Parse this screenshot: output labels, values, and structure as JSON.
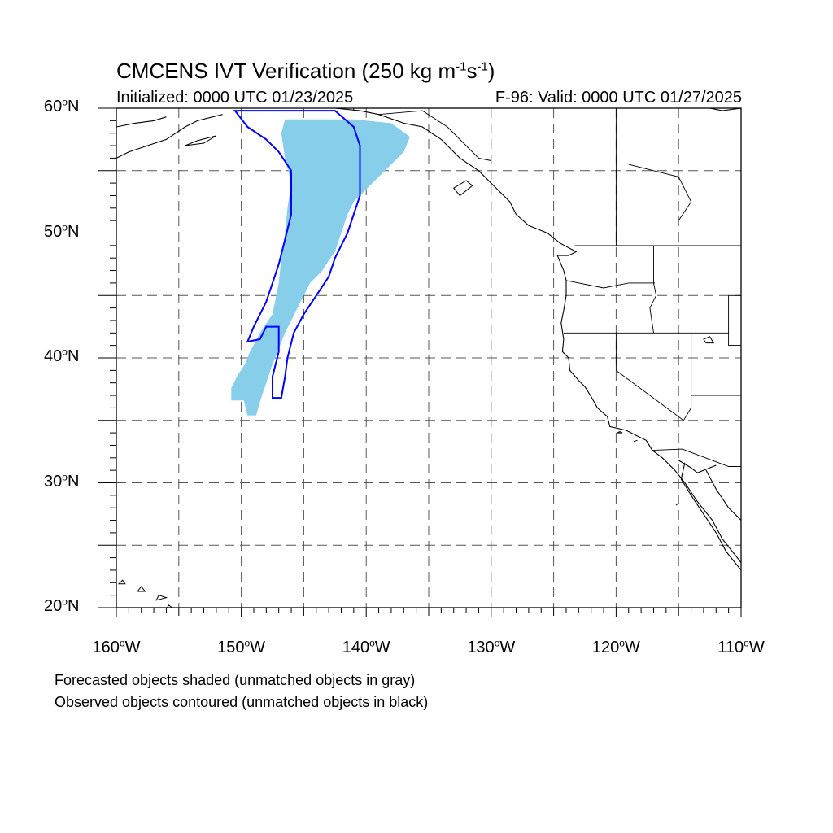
{
  "title": {
    "prefix": "CMCENS IVT Verification (250 kg m",
    "exp1": "-1",
    "mid": "s",
    "exp2": "-1",
    "suffix": ")"
  },
  "subtitle_left": "Initialized: 0000 UTC 01/23/2025",
  "subtitle_right": "F-96: Valid: 0000 UTC 01/27/2025",
  "map": {
    "lon_range": [
      -160,
      -110
    ],
    "lat_range": [
      20,
      60
    ],
    "grid": "dashed",
    "lat_labels": [
      {
        "lat": 60,
        "text": "60",
        "deg": "o",
        "hem": "N"
      },
      {
        "lat": 50,
        "text": "50",
        "deg": "o",
        "hem": "N"
      },
      {
        "lat": 40,
        "text": "40",
        "deg": "o",
        "hem": "N"
      },
      {
        "lat": 30,
        "text": "30",
        "deg": "o",
        "hem": "N"
      },
      {
        "lat": 20,
        "text": "20",
        "deg": "o",
        "hem": "N"
      }
    ],
    "lon_labels": [
      {
        "lon": -160,
        "text": "160",
        "deg": "o",
        "hem": "W"
      },
      {
        "lon": -150,
        "text": "150",
        "deg": "o",
        "hem": "W"
      },
      {
        "lon": -140,
        "text": "140",
        "deg": "o",
        "hem": "W"
      },
      {
        "lon": -130,
        "text": "130",
        "deg": "o",
        "hem": "W"
      },
      {
        "lon": -120,
        "text": "120",
        "deg": "o",
        "hem": "W"
      },
      {
        "lon": -110,
        "text": "110",
        "deg": "o",
        "hem": "W"
      }
    ],
    "colors": {
      "forecast_fill": "#87ceeb",
      "observed_contour": "#0000ff",
      "coastline": "#000000",
      "grid": "#555555"
    },
    "forecast_object": {
      "status": "matched",
      "outline_lonlat": [
        [
          -146.5,
          59.1
        ],
        [
          -141.0,
          59.1
        ],
        [
          -138.0,
          58.8
        ],
        [
          -136.5,
          57.7
        ],
        [
          -137.0,
          56.5
        ],
        [
          -138.0,
          55.5
        ],
        [
          -139.0,
          54.5
        ],
        [
          -140.0,
          53.5
        ],
        [
          -141.0,
          52.5
        ],
        [
          -141.5,
          51.5
        ],
        [
          -142.0,
          50.0
        ],
        [
          -142.5,
          48.5
        ],
        [
          -143.0,
          47.8
        ],
        [
          -143.5,
          47.0
        ],
        [
          -144.5,
          46.0
        ],
        [
          -145.0,
          45.0
        ],
        [
          -145.5,
          44.0
        ],
        [
          -146.5,
          42.0
        ],
        [
          -147.5,
          39.5
        ],
        [
          -148.0,
          38.0
        ],
        [
          -148.5,
          36.5
        ],
        [
          -148.8,
          35.4
        ],
        [
          -149.5,
          35.4
        ],
        [
          -149.8,
          36.6
        ],
        [
          -150.8,
          36.6
        ],
        [
          -150.8,
          37.6
        ],
        [
          -150.3,
          38.6
        ],
        [
          -149.7,
          39.5
        ],
        [
          -149.3,
          40.5
        ],
        [
          -148.5,
          42.0
        ],
        [
          -147.5,
          43.5
        ],
        [
          -147.0,
          46.0
        ],
        [
          -146.8,
          48.0
        ],
        [
          -146.5,
          50.0
        ],
        [
          -146.3,
          52.0
        ],
        [
          -146.0,
          54.0
        ],
        [
          -146.5,
          56.0
        ],
        [
          -146.8,
          58.0
        ]
      ]
    },
    "observed_object": {
      "status": "matched",
      "outline_lonlat": [
        [
          -150.5,
          59.8
        ],
        [
          -142.5,
          59.8
        ],
        [
          -141.0,
          58.5
        ],
        [
          -140.5,
          57.0
        ],
        [
          -140.5,
          55.0
        ],
        [
          -140.5,
          53.0
        ],
        [
          -141.0,
          51.5
        ],
        [
          -141.5,
          50.0
        ],
        [
          -142.5,
          48.0
        ],
        [
          -143.0,
          46.5
        ],
        [
          -144.0,
          45.0
        ],
        [
          -145.0,
          43.5
        ],
        [
          -145.8,
          42.0
        ],
        [
          -146.3,
          40.0
        ],
        [
          -146.5,
          38.5
        ],
        [
          -146.8,
          36.8
        ],
        [
          -147.5,
          36.8
        ],
        [
          -147.5,
          38.5
        ],
        [
          -147.0,
          40.5
        ],
        [
          -147.0,
          42.5
        ],
        [
          -148.0,
          42.5
        ],
        [
          -148.5,
          41.5
        ],
        [
          -149.5,
          41.3
        ],
        [
          -149.0,
          42.5
        ],
        [
          -148.0,
          44.5
        ],
        [
          -147.5,
          46.0
        ],
        [
          -147.0,
          47.5
        ],
        [
          -146.5,
          49.5
        ],
        [
          -146.0,
          51.5
        ],
        [
          -146.0,
          53.5
        ],
        [
          -146.0,
          55.0
        ],
        [
          -147.0,
          56.5
        ],
        [
          -148.0,
          57.5
        ],
        [
          -149.5,
          58.5
        ]
      ]
    },
    "coastlines": [
      [
        [
          -110.0,
          23.0
        ],
        [
          -111.2,
          24.5
        ],
        [
          -112.0,
          26.0
        ],
        [
          -113.0,
          27.5
        ],
        [
          -114.0,
          29.0
        ],
        [
          -114.8,
          30.3
        ],
        [
          -114.5,
          31.6
        ]
      ],
      [
        [
          -109.7,
          23.2
        ],
        [
          -110.3,
          24.0
        ],
        [
          -111.5,
          25.5
        ],
        [
          -112.3,
          27.0
        ],
        [
          -113.5,
          28.5
        ],
        [
          -114.5,
          30.0
        ],
        [
          -115.3,
          31.0
        ],
        [
          -116.3,
          32.0
        ],
        [
          -117.1,
          32.6
        ],
        [
          -117.6,
          33.4
        ],
        [
          -118.4,
          33.8
        ],
        [
          -119.2,
          34.2
        ],
        [
          -120.5,
          34.5
        ],
        [
          -120.7,
          35.3
        ],
        [
          -121.5,
          36.0
        ],
        [
          -122.0,
          36.9
        ],
        [
          -122.5,
          37.7
        ],
        [
          -123.0,
          38.2
        ],
        [
          -123.7,
          39.0
        ],
        [
          -123.8,
          40.0
        ],
        [
          -124.3,
          40.5
        ],
        [
          -124.2,
          41.5
        ],
        [
          -124.4,
          42.8
        ],
        [
          -124.2,
          43.8
        ],
        [
          -124.0,
          45.0
        ],
        [
          -124.0,
          46.2
        ],
        [
          -124.2,
          47.0
        ],
        [
          -124.7,
          48.2
        ],
        [
          -123.8,
          48.2
        ],
        [
          -123.2,
          48.5
        ],
        [
          -124.5,
          49.2
        ],
        [
          -125.5,
          50.0
        ],
        [
          -127.0,
          50.6
        ],
        [
          -128.0,
          51.5
        ],
        [
          -128.5,
          52.5
        ],
        [
          -130.0,
          54.0
        ],
        [
          -131.0,
          55.0
        ],
        [
          -132.5,
          56.0
        ],
        [
          -134.0,
          57.5
        ],
        [
          -135.5,
          58.5
        ],
        [
          -137.0,
          58.8
        ],
        [
          -139.0,
          59.5
        ],
        [
          -140.5,
          59.8
        ],
        [
          -142.5,
          60.0
        ]
      ],
      [
        [
          -112.0,
          31.4
        ],
        [
          -113.5,
          30.8
        ],
        [
          -114.0,
          31.2
        ],
        [
          -115.0,
          31.8
        ]
      ],
      [
        [
          -110.0,
          27.0
        ],
        [
          -111.0,
          28.0
        ],
        [
          -112.0,
          29.5
        ],
        [
          -112.8,
          31.0
        ]
      ],
      [
        [
          -151.5,
          59.5
        ],
        [
          -153.5,
          59.0
        ],
        [
          -154.5,
          58.5
        ],
        [
          -156.0,
          57.5
        ],
        [
          -157.5,
          57.0
        ],
        [
          -159.0,
          56.5
        ],
        [
          -160.0,
          56.0
        ]
      ],
      [
        [
          -160.0,
          58.5
        ],
        [
          -158.5,
          58.8
        ],
        [
          -157.0,
          59.0
        ],
        [
          -156.0,
          59.3
        ]
      ],
      [
        [
          -112.5,
          60.0
        ],
        [
          -111.5,
          59.8
        ],
        [
          -110.0,
          60.0
        ]
      ]
    ],
    "islands": [
      [
        [
          -132.5,
          53.0
        ],
        [
          -131.5,
          53.8
        ],
        [
          -132.0,
          54.2
        ],
        [
          -133.0,
          53.6
        ]
      ],
      [
        [
          -152.0,
          57.8
        ],
        [
          -153.5,
          57.4
        ],
        [
          -154.5,
          57.0
        ],
        [
          -153.0,
          57.2
        ]
      ],
      [
        [
          -155.9,
          19.0
        ],
        [
          -155.0,
          19.6
        ],
        [
          -155.8,
          20.2
        ],
        [
          -156.2,
          19.6
        ]
      ],
      [
        [
          -156.8,
          20.6
        ],
        [
          -156.0,
          20.8
        ],
        [
          -156.6,
          21.0
        ]
      ],
      [
        [
          -158.3,
          21.3
        ],
        [
          -157.7,
          21.3
        ],
        [
          -158.0,
          21.7
        ]
      ],
      [
        [
          -159.8,
          21.9
        ],
        [
          -159.3,
          21.9
        ],
        [
          -159.5,
          22.2
        ]
      ],
      [
        [
          -119.9,
          34.0
        ],
        [
          -119.5,
          34.0
        ],
        [
          -119.7,
          34.1
        ]
      ],
      [
        [
          -118.6,
          33.3
        ],
        [
          -118.3,
          33.4
        ]
      ],
      [
        [
          -115.2,
          28.2
        ],
        [
          -115.0,
          28.4
        ]
      ]
    ],
    "borders": [
      [
        [
          -123.3,
          49.0
        ],
        [
          -110.0,
          49.0
        ]
      ],
      [
        [
          -124.2,
          42.0
        ],
        [
          -120.0,
          42.0
        ],
        [
          -111.0,
          42.0
        ]
      ],
      [
        [
          -120.0,
          42.0
        ],
        [
          -120.0,
          39.0
        ],
        [
          -114.6,
          35.0
        ]
      ],
      [
        [
          -117.0,
          49.0
        ],
        [
          -117.0,
          46.0
        ],
        [
          -116.8,
          45.0
        ],
        [
          -117.3,
          44.0
        ],
        [
          -117.0,
          42.0
        ]
      ],
      [
        [
          -124.0,
          46.2
        ],
        [
          -121.0,
          45.6
        ],
        [
          -119.0,
          46.0
        ],
        [
          -116.9,
          46.0
        ]
      ],
      [
        [
          -114.0,
          42.0
        ],
        [
          -114.0,
          36.0
        ],
        [
          -114.6,
          35.0
        ]
      ],
      [
        [
          -114.0,
          37.0
        ],
        [
          -110.0,
          37.0
        ]
      ],
      [
        [
          -111.0,
          45.0
        ],
        [
          -111.0,
          41.0
        ],
        [
          -110.0,
          41.0
        ]
      ],
      [
        [
          -111.0,
          45.0
        ],
        [
          -110.0,
          45.0
        ]
      ],
      [
        [
          -117.1,
          32.6
        ],
        [
          -114.7,
          32.7
        ],
        [
          -111.0,
          31.3
        ],
        [
          -110.0,
          31.3
        ]
      ],
      [
        [
          -120.0,
          60.0
        ],
        [
          -120.0,
          49.0
        ]
      ],
      [
        [
          -141.0,
          60.0
        ],
        [
          -141.0,
          59.8
        ]
      ],
      [
        [
          -139.0,
          59.5
        ],
        [
          -135.5,
          59.8
        ],
        [
          -133.5,
          58.5
        ],
        [
          -131.0,
          56.0
        ],
        [
          -130.0,
          55.8
        ]
      ],
      [
        [
          -119.0,
          55.5
        ],
        [
          -117.0,
          55.0
        ],
        [
          -115.0,
          54.5
        ],
        [
          -114.0,
          52.5
        ],
        [
          -115.0,
          51.0
        ]
      ]
    ],
    "lakes": [
      [
        [
          -112.8,
          41.2
        ],
        [
          -112.2,
          41.2
        ],
        [
          -112.5,
          41.7
        ],
        [
          -113.0,
          41.5
        ]
      ]
    ]
  },
  "caption_line1": "Forecasted objects shaded (unmatched objects in gray)",
  "caption_line2": "Observed objects contoured (unmatched objects in black)"
}
